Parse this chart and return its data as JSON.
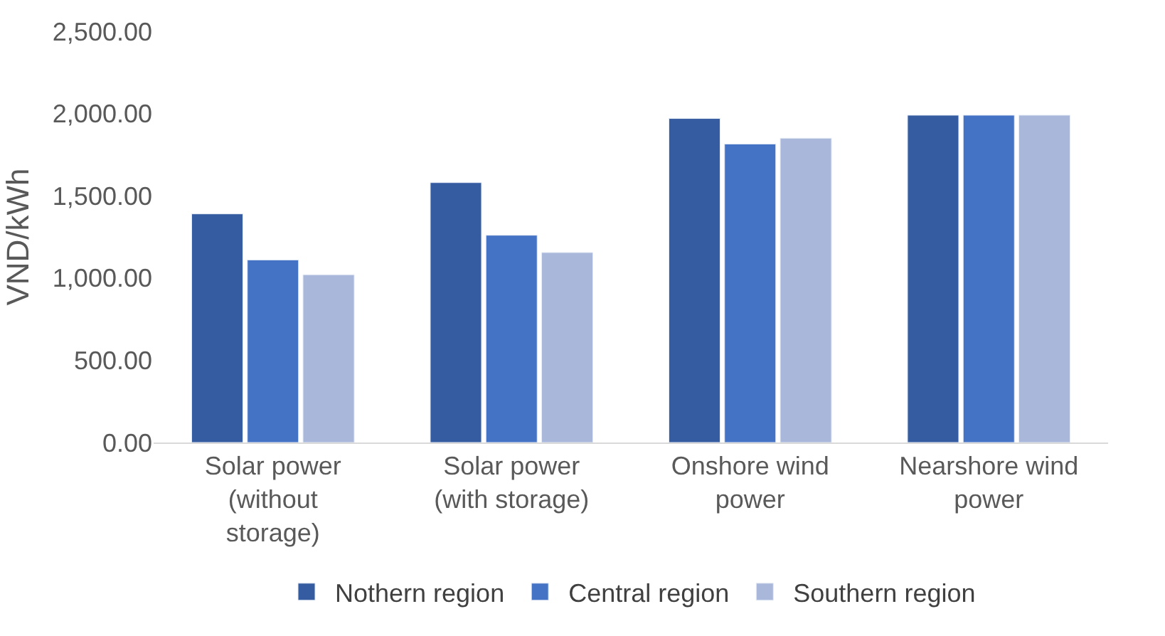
{
  "chart_data": {
    "type": "bar",
    "ylabel": "VND/kWh",
    "categories": [
      "Solar power\n(without\nstorage)",
      "Solar power\n(with storage)",
      "Onshore wind\npower",
      "Nearshore wind\npower"
    ],
    "series": [
      {
        "name": "Nothern region",
        "color": "#355ca0",
        "values": [
          1390,
          1580,
          1970,
          1990
        ]
      },
      {
        "name": "Central region",
        "color": "#4472c4",
        "values": [
          1110,
          1260,
          1815,
          1990
        ]
      },
      {
        "name": "Southern region",
        "color": "#a9b7db",
        "values": [
          1020,
          1155,
          1850,
          1990
        ]
      }
    ],
    "ylim": [
      0,
      2500
    ],
    "yticks": [
      {
        "value": 0,
        "label": "0.00"
      },
      {
        "value": 500,
        "label": "500.00"
      },
      {
        "value": 1000,
        "label": "1,000.00"
      },
      {
        "value": 1500,
        "label": "1,500.00"
      },
      {
        "value": 2000,
        "label": "2,000.00"
      },
      {
        "value": 2500,
        "label": "2,500.00"
      }
    ],
    "grid": false,
    "legend": "bottom"
  }
}
